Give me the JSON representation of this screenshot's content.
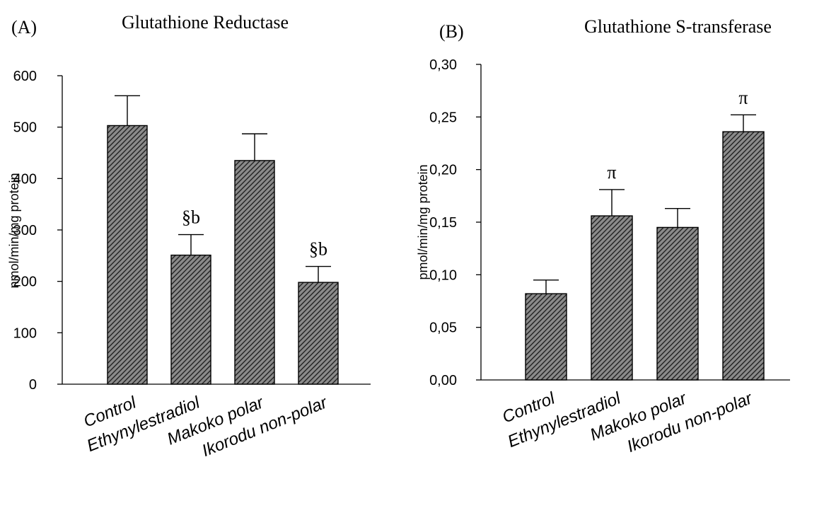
{
  "chart_data": [
    {
      "type": "bar",
      "panel_label": "(A)",
      "title": "Glutathione Reductase",
      "ylabel": "nmol/min/mg protein",
      "xlabel": "",
      "categories": [
        "Control",
        "Ethynylestradiol",
        "Makoko polar",
        "Ikorodu non-polar"
      ],
      "values": [
        503,
        251,
        435,
        198
      ],
      "errors": [
        58,
        40,
        52,
        31
      ],
      "annotations": [
        "",
        "§b",
        "",
        "§b"
      ],
      "ylim": [
        0,
        600
      ],
      "yticks": [
        0,
        100,
        200,
        300,
        400,
        500,
        600
      ],
      "ytick_labels": [
        "0",
        "100",
        "200",
        "300",
        "400",
        "500",
        "600"
      ],
      "bar_fill": "#555555",
      "hatch": "diagonal",
      "grid": false
    },
    {
      "type": "bar",
      "panel_label": "(B)",
      "title": "Glutathione S-transferase",
      "ylabel": "pmol/min/mg protein",
      "xlabel": "",
      "categories": [
        "Control",
        "Ethynylestradiol",
        "Makoko polar",
        "Ikorodu non-polar"
      ],
      "values": [
        0.082,
        0.156,
        0.145,
        0.236
      ],
      "errors": [
        0.013,
        0.025,
        0.018,
        0.016
      ],
      "annotations": [
        "",
        "π",
        "",
        "π"
      ],
      "ylim": [
        0,
        0.3
      ],
      "yticks": [
        0,
        0.05,
        0.1,
        0.15,
        0.2,
        0.25,
        0.3
      ],
      "ytick_labels": [
        "0,00",
        "0,05",
        "0,10",
        "0,15",
        "0,20",
        "0,25",
        "0,30"
      ],
      "bar_fill": "#555555",
      "hatch": "diagonal",
      "grid": false
    }
  ]
}
